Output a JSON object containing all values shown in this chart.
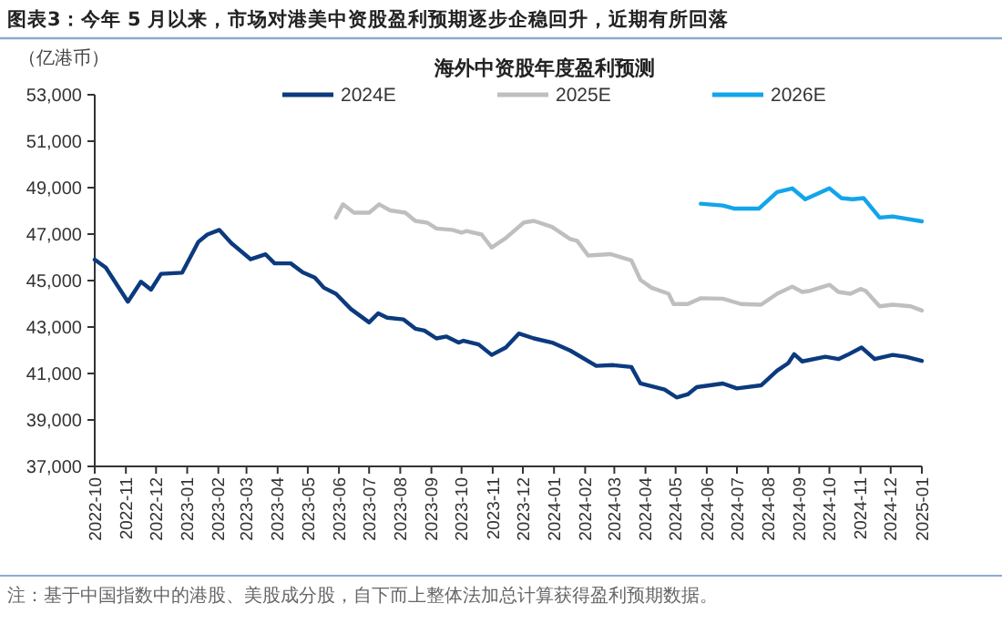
{
  "chart_data": {
    "type": "line",
    "title": "图表3：今年 5 月以来，市场对港美中资股盈利预期逐步企稳回升，近期有所回落",
    "subtitle": "海外中资股年度盈利预测",
    "ylabel": "（亿港币）",
    "annotations": [
      "注：基于中国指数中的港股、美股成分股，自下而上整体法加总计算获得盈利预期数据。"
    ],
    "xlim": [
      "2022-10-01",
      "2025-01-01"
    ],
    "xticks": [
      "2022-10",
      "2022-11",
      "2022-12",
      "2023-01",
      "2023-02",
      "2023-03",
      "2023-04",
      "2023-05",
      "2023-06",
      "2023-07",
      "2023-08",
      "2023-09",
      "2023-10",
      "2023-11",
      "2023-12",
      "2024-01",
      "2024-02",
      "2024-03",
      "2024-04",
      "2024-05",
      "2024-06",
      "2024-07",
      "2024-08",
      "2024-09",
      "2024-10",
      "2024-11",
      "2024-12",
      "2025-01"
    ],
    "ylim": [
      37000,
      53000
    ],
    "yticks": [
      {
        "value": 37000,
        "label": "37,000"
      },
      {
        "value": 39000,
        "label": "39,000"
      },
      {
        "value": 41000,
        "label": "41,000"
      },
      {
        "value": 43000,
        "label": "43,000"
      },
      {
        "value": 45000,
        "label": "45,000"
      },
      {
        "value": 47000,
        "label": "47,000"
      },
      {
        "value": 49000,
        "label": "49,000"
      },
      {
        "value": 51000,
        "label": "51,000"
      },
      {
        "value": 53000,
        "label": "53,000"
      }
    ],
    "grid": false,
    "legend": "top",
    "marker": "none",
    "line_style": "solid",
    "series": [
      {
        "name": "2024E",
        "color": "#0b3a7e",
        "x": [
          "2022-10-01",
          "2022-10-12",
          "2022-11-03",
          "2022-11-16",
          "2022-11-26",
          "2022-12-06",
          "2022-12-27",
          "2023-01-12",
          "2023-01-21",
          "2023-02-02",
          "2023-02-14",
          "2023-03-05",
          "2023-03-20",
          "2023-03-29",
          "2023-04-14",
          "2023-04-26",
          "2023-05-08",
          "2023-05-17",
          "2023-05-29",
          "2023-06-13",
          "2023-07-01",
          "2023-07-10",
          "2023-07-19",
          "2023-08-04",
          "2023-08-16",
          "2023-08-25",
          "2023-09-06",
          "2023-09-16",
          "2023-09-28",
          "2023-10-03",
          "2023-10-18",
          "2023-10-31",
          "2023-11-14",
          "2023-11-27",
          "2023-12-12",
          "2023-12-30",
          "2024-01-17",
          "2024-02-12",
          "2024-02-29",
          "2024-03-18",
          "2024-03-27",
          "2024-04-20",
          "2024-05-02",
          "2024-05-13",
          "2024-05-22",
          "2024-06-17",
          "2024-07-01",
          "2024-07-25",
          "2024-08-10",
          "2024-08-21",
          "2024-08-27",
          "2024-09-04",
          "2024-09-27",
          "2024-10-10",
          "2024-10-19",
          "2024-11-02",
          "2024-11-15",
          "2024-12-03",
          "2024-12-16",
          "2025-01-01"
        ],
        "values": [
          45900,
          45560,
          44090,
          44950,
          44610,
          45290,
          45340,
          46660,
          46980,
          47180,
          46610,
          45920,
          46130,
          45740,
          45740,
          45350,
          45130,
          44690,
          44430,
          43770,
          43200,
          43590,
          43400,
          43330,
          42930,
          42850,
          42510,
          42590,
          42330,
          42410,
          42250,
          41800,
          42120,
          42720,
          42510,
          42330,
          41990,
          41330,
          41360,
          41280,
          40570,
          40310,
          39970,
          40100,
          40410,
          40570,
          40360,
          40490,
          41120,
          41440,
          41830,
          41520,
          41720,
          41620,
          41800,
          42120,
          41620,
          41800,
          41720,
          41540
        ]
      },
      {
        "name": "2025E",
        "color": "#bfbfbf",
        "x": [
          "2023-05-29",
          "2023-06-05",
          "2023-06-16",
          "2023-07-01",
          "2023-07-11",
          "2023-07-22",
          "2023-08-06",
          "2023-08-16",
          "2023-08-28",
          "2023-09-06",
          "2023-09-22",
          "2023-10-01",
          "2023-10-06",
          "2023-10-21",
          "2023-10-31",
          "2023-11-14",
          "2023-12-02",
          "2023-12-12",
          "2023-12-30",
          "2024-01-17",
          "2024-01-24",
          "2024-02-04",
          "2024-02-26",
          "2024-03-18",
          "2024-03-27",
          "2024-04-07",
          "2024-04-24",
          "2024-04-29",
          "2024-05-13",
          "2024-05-26",
          "2024-06-17",
          "2024-07-05",
          "2024-07-25",
          "2024-08-10",
          "2024-08-25",
          "2024-09-04",
          "2024-09-12",
          "2024-10-01",
          "2024-10-10",
          "2024-10-22",
          "2024-11-01",
          "2024-11-06",
          "2024-11-20",
          "2024-12-03",
          "2024-12-21",
          "2025-01-01"
        ],
        "values": [
          47710,
          48280,
          47920,
          47920,
          48280,
          48020,
          47920,
          47570,
          47490,
          47240,
          47180,
          47060,
          47130,
          46980,
          46420,
          46830,
          47500,
          47570,
          47310,
          46790,
          46710,
          46080,
          46140,
          45870,
          45030,
          44690,
          44430,
          43990,
          43990,
          44240,
          44220,
          43990,
          43960,
          44430,
          44740,
          44510,
          44560,
          44820,
          44510,
          44430,
          44640,
          44560,
          43890,
          43960,
          43890,
          43710
        ]
      },
      {
        "name": "2026E",
        "color": "#12a5ea",
        "x": [
          "2024-05-26",
          "2024-06-17",
          "2024-06-28",
          "2024-07-23",
          "2024-08-10",
          "2024-08-25",
          "2024-09-07",
          "2024-10-01",
          "2024-10-13",
          "2024-10-24",
          "2024-11-04",
          "2024-11-20",
          "2024-12-03",
          "2025-01-01"
        ],
        "values": [
          48310,
          48230,
          48100,
          48100,
          48810,
          48970,
          48500,
          48970,
          48550,
          48500,
          48550,
          47710,
          47760,
          47550
        ]
      }
    ]
  }
}
